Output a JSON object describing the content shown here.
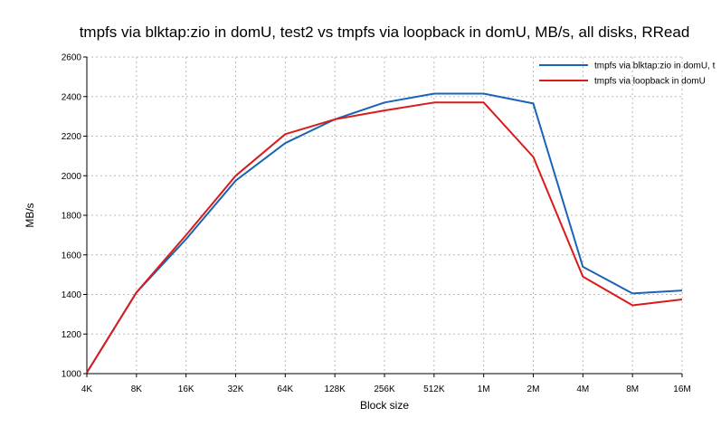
{
  "chart_data": {
    "type": "line",
    "title": "tmpfs via blktap:zio in domU, test2 vs tmpfs via loopback in domU, MB/s, all disks, RRead",
    "xlabel": "Block size",
    "ylabel": "MB/s",
    "categories": [
      "4K",
      "8K",
      "16K",
      "32K",
      "64K",
      "128K",
      "256K",
      "512K",
      "1M",
      "2M",
      "4M",
      "8M",
      "16M"
    ],
    "ylim": [
      1000,
      2600
    ],
    "yticks": [
      1000,
      1200,
      1400,
      1600,
      1800,
      2000,
      2200,
      2400,
      2600
    ],
    "grid": true,
    "legend_position": "top-right",
    "series": [
      {
        "name": "tmpfs via blktap:zio in domU, t",
        "color": "#1a63b5",
        "values": [
          1005,
          1410,
          1680,
          1975,
          2165,
          2285,
          2370,
          2415,
          2415,
          2365,
          1540,
          1405,
          1420
        ]
      },
      {
        "name": "tmpfs via loopback in domU",
        "color": "#d81b1b",
        "values": [
          1005,
          1410,
          1700,
          2000,
          2210,
          2285,
          2330,
          2370,
          2370,
          2095,
          1490,
          1345,
          1375
        ]
      }
    ]
  }
}
